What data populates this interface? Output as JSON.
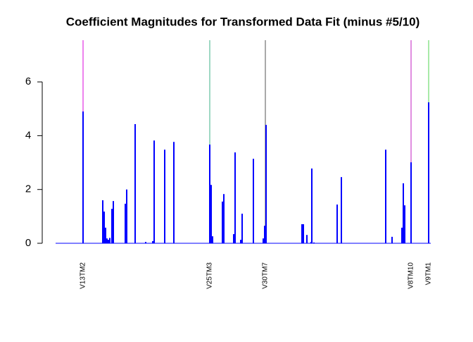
{
  "chart_data": {
    "type": "bar",
    "title": "Coefficient Magnitudes for Transformed Data Fit (minus #5/10)",
    "color": "#0000ff",
    "x": [
      39,
      67,
      69,
      71,
      73,
      75,
      77,
      80,
      82,
      99,
      101,
      113,
      128,
      138,
      140,
      155,
      168,
      219,
      221,
      223,
      237,
      239,
      253,
      255,
      263,
      265,
      281,
      295,
      297,
      299,
      350,
      352,
      357,
      363,
      364,
      367,
      400,
      406,
      469,
      478,
      492,
      494,
      496,
      505,
      530
    ],
    "values": [
      4.9,
      1.6,
      1.18,
      0.58,
      0.18,
      0.13,
      0.2,
      1.28,
      1.57,
      1.47,
      2.0,
      4.43,
      0.05,
      0.08,
      3.82,
      3.48,
      3.77,
      3.67,
      2.17,
      0.26,
      1.55,
      1.83,
      0.34,
      3.38,
      0.13,
      1.1,
      3.14,
      0.18,
      0.65,
      4.4,
      0.71,
      0.71,
      0.31,
      0.05,
      2.78,
      0.03,
      1.44,
      2.46,
      3.48,
      0.24,
      0.58,
      2.23,
      1.41,
      3.01,
      5.24
    ],
    "xlim": [
      0,
      533
    ],
    "ylim": [
      0,
      7.55
    ],
    "yticks": [
      0,
      2,
      4,
      6
    ],
    "highlights": [
      {
        "label": "V13TM2",
        "x": 39,
        "color": "#ee82ee"
      },
      {
        "label": "V25TM3",
        "x": 219,
        "color": "#9fd8c4"
      },
      {
        "label": "V30TM7",
        "x": 298,
        "color": "#a9a9a9"
      },
      {
        "label": "V8TM10",
        "x": 505,
        "color": "#e08ee0"
      },
      {
        "label": "V9TM1",
        "x": 530,
        "color": "#a8eaa8"
      }
    ]
  }
}
